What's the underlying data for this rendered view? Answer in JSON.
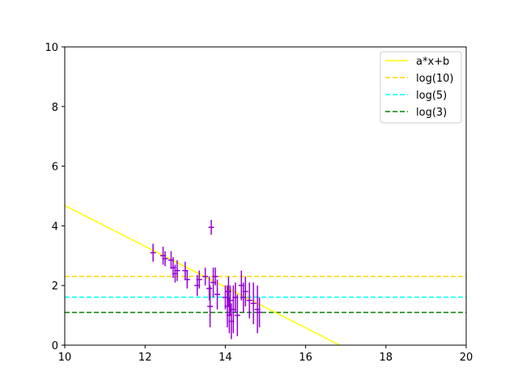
{
  "chart_data": {
    "type": "scatter",
    "xlim": [
      10,
      20
    ],
    "ylim": [
      0,
      10
    ],
    "x_ticks": [
      "10",
      "12",
      "14",
      "16",
      "18",
      "20"
    ],
    "y_ticks": [
      "0",
      "2",
      "4",
      "6",
      "8",
      "10"
    ],
    "grid": false,
    "legend_position": "top-right",
    "legend": [
      "a*x+b",
      "log(10)",
      "log(5)",
      "log(3)"
    ],
    "lines": [
      {
        "name": "a*x+b",
        "kind": "fit",
        "color": "#ffff00",
        "dash": "solid",
        "points": [
          [
            10,
            4.68
          ],
          [
            16.85,
            0
          ]
        ]
      },
      {
        "name": "log(10)",
        "kind": "hline",
        "color": "#ffd700",
        "dash": "dashed",
        "y": 2.3026
      },
      {
        "name": "log(5)",
        "kind": "hline",
        "color": "#00ffff",
        "dash": "dashed",
        "y": 1.6094
      },
      {
        "name": "log(3)",
        "kind": "hline",
        "color": "#008000",
        "dash": "dashed",
        "y": 1.0986
      }
    ],
    "errorbars": {
      "color": "#9400d3",
      "points": [
        {
          "x": 12.2,
          "y": 3.1,
          "yerr": 0.3
        },
        {
          "x": 12.45,
          "y": 3.0,
          "yerr": 0.3
        },
        {
          "x": 12.5,
          "y": 2.9,
          "yerr": 0.25
        },
        {
          "x": 12.65,
          "y": 2.85,
          "yerr": 0.3
        },
        {
          "x": 12.7,
          "y": 2.6,
          "yerr": 0.35
        },
        {
          "x": 12.75,
          "y": 2.4,
          "yerr": 0.3
        },
        {
          "x": 12.8,
          "y": 2.5,
          "yerr": 0.35
        },
        {
          "x": 13.0,
          "y": 2.5,
          "yerr": 0.3
        },
        {
          "x": 13.05,
          "y": 2.2,
          "yerr": 0.3
        },
        {
          "x": 13.3,
          "y": 2.0,
          "yerr": 0.35
        },
        {
          "x": 13.35,
          "y": 2.2,
          "yerr": 0.3
        },
        {
          "x": 13.5,
          "y": 2.3,
          "yerr": 0.3
        },
        {
          "x": 13.6,
          "y": 1.9,
          "yerr": 0.4
        },
        {
          "x": 13.62,
          "y": 1.3,
          "yerr": 0.7
        },
        {
          "x": 13.65,
          "y": 3.95,
          "yerr": 0.25
        },
        {
          "x": 13.7,
          "y": 2.1,
          "yerr": 0.5
        },
        {
          "x": 13.75,
          "y": 2.3,
          "yerr": 0.3
        },
        {
          "x": 13.8,
          "y": 1.7,
          "yerr": 0.5
        },
        {
          "x": 14.0,
          "y": 1.6,
          "yerr": 0.4
        },
        {
          "x": 14.05,
          "y": 1.3,
          "yerr": 0.7
        },
        {
          "x": 14.08,
          "y": 1.8,
          "yerr": 0.5
        },
        {
          "x": 14.1,
          "y": 1.0,
          "yerr": 0.6
        },
        {
          "x": 14.12,
          "y": 1.5,
          "yerr": 0.5
        },
        {
          "x": 14.15,
          "y": 0.8,
          "yerr": 0.6
        },
        {
          "x": 14.2,
          "y": 1.2,
          "yerr": 0.8
        },
        {
          "x": 14.25,
          "y": 1.6,
          "yerr": 0.5
        },
        {
          "x": 14.3,
          "y": 1.0,
          "yerr": 0.7
        },
        {
          "x": 14.4,
          "y": 2.0,
          "yerr": 0.5
        },
        {
          "x": 14.45,
          "y": 1.6,
          "yerr": 0.5
        },
        {
          "x": 14.5,
          "y": 1.8,
          "yerr": 0.5
        },
        {
          "x": 14.6,
          "y": 1.5,
          "yerr": 0.6
        },
        {
          "x": 14.7,
          "y": 1.4,
          "yerr": 0.7
        },
        {
          "x": 14.8,
          "y": 1.2,
          "yerr": 0.8
        },
        {
          "x": 14.85,
          "y": 1.1,
          "yerr": 0.5
        }
      ]
    }
  }
}
